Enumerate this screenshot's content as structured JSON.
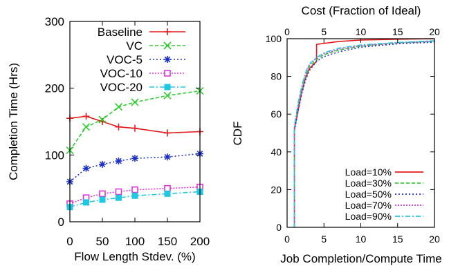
{
  "chart_data": [
    {
      "type": "line",
      "xlabel": "Flow Length Stdev. (%)",
      "ylabel": "Completion Time (Hrs)",
      "xlim": [
        0,
        200
      ],
      "ylim": [
        0,
        300
      ],
      "xticks": [
        0,
        50,
        100,
        150,
        200
      ],
      "yticks": [
        0,
        100,
        200,
        300
      ],
      "legend": "top-right",
      "grid": false,
      "x": [
        0,
        25,
        50,
        75,
        100,
        150,
        200
      ],
      "series": [
        {
          "name": "Baseline",
          "color": "#e41a1c",
          "marker": "plus",
          "dash": "solid",
          "values": [
            155,
            158,
            150,
            142,
            140,
            133,
            135
          ]
        },
        {
          "name": "VC",
          "color": "#2ecc2e",
          "marker": "x",
          "dash": "5,3",
          "values": [
            107,
            142,
            153,
            172,
            179,
            189,
            196
          ]
        },
        {
          "name": "VOC-5",
          "color": "#1c2fc9",
          "marker": "star",
          "dash": "2,3",
          "values": [
            60,
            80,
            86,
            91,
            95,
            97,
            102
          ]
        },
        {
          "name": "VOC-10",
          "color": "#e034d8",
          "marker": "square-open",
          "dash": "2,2",
          "values": [
            27,
            36,
            42,
            45,
            48,
            50,
            52
          ]
        },
        {
          "name": "VOC-20",
          "color": "#1ec8e0",
          "marker": "square-filled",
          "dash": "7,3,2,3",
          "values": [
            22,
            29,
            33,
            36,
            39,
            42,
            45
          ]
        }
      ]
    },
    {
      "type": "line",
      "xlabel": "Job Completion/Compute Time",
      "ylabel": "CDF",
      "x2label": "Cost (Fraction of Ideal)",
      "xlim": [
        0,
        20
      ],
      "ylim": [
        0,
        100
      ],
      "xticks": [
        0,
        5,
        10,
        15,
        20
      ],
      "yticks": [
        0,
        20,
        40,
        60,
        80,
        100
      ],
      "legend": "bottom-right",
      "grid": false,
      "series": [
        {
          "name": "Load=10%",
          "color": "#e41a1c",
          "dash": "solid",
          "points": [
            [
              1,
              0
            ],
            [
              1,
              52
            ],
            [
              1.5,
              62
            ],
            [
              2,
              72
            ],
            [
              2.5,
              79
            ],
            [
              3,
              84
            ],
            [
              3.5,
              86
            ],
            [
              4,
              88
            ],
            [
              4,
              97
            ],
            [
              5,
              97.5
            ],
            [
              7,
              98.5
            ],
            [
              10,
              99.3
            ],
            [
              15,
              99.7
            ],
            [
              20,
              100
            ]
          ]
        },
        {
          "name": "Load=30%",
          "color": "#2ecc2e",
          "dash": "5,3",
          "points": [
            [
              1,
              0
            ],
            [
              1,
              52
            ],
            [
              1.5,
              64
            ],
            [
              2,
              73
            ],
            [
              2.5,
              80
            ],
            [
              3,
              85
            ],
            [
              4,
              89
            ],
            [
              5,
              91.5
            ],
            [
              7,
              94
            ],
            [
              10,
              96
            ],
            [
              15,
              97.8
            ],
            [
              20,
              98.5
            ]
          ]
        },
        {
          "name": "Load=50%",
          "color": "#1c2fc9",
          "dash": "2,3",
          "points": [
            [
              1,
              0
            ],
            [
              1,
              51
            ],
            [
              1.5,
              62
            ],
            [
              2,
              71
            ],
            [
              2.5,
              78
            ],
            [
              3,
              83
            ],
            [
              4,
              88
            ],
            [
              5,
              90.5
            ],
            [
              7,
              93
            ],
            [
              10,
              95.5
            ],
            [
              15,
              97.3
            ],
            [
              20,
              98.2
            ]
          ]
        },
        {
          "name": "Load=70%",
          "color": "#e034d8",
          "dash": "2,2",
          "points": [
            [
              1,
              0
            ],
            [
              1,
              53
            ],
            [
              1.5,
              65
            ],
            [
              2,
              74
            ],
            [
              2.5,
              81
            ],
            [
              3,
              86
            ],
            [
              4,
              90
            ],
            [
              5,
              92
            ],
            [
              7,
              94.5
            ],
            [
              10,
              96.3
            ],
            [
              15,
              97.8
            ],
            [
              20,
              98.7
            ]
          ]
        },
        {
          "name": "Load=90%",
          "color": "#1ec8e0",
          "dash": "7,3,2,3",
          "points": [
            [
              1,
              0
            ],
            [
              1,
              54
            ],
            [
              1.5,
              66
            ],
            [
              2,
              75
            ],
            [
              2.5,
              82
            ],
            [
              3,
              86.5
            ],
            [
              4,
              90
            ],
            [
              5,
              92.5
            ],
            [
              7,
              95
            ],
            [
              10,
              96.7
            ],
            [
              15,
              98
            ],
            [
              20,
              98.9
            ]
          ]
        }
      ]
    }
  ]
}
